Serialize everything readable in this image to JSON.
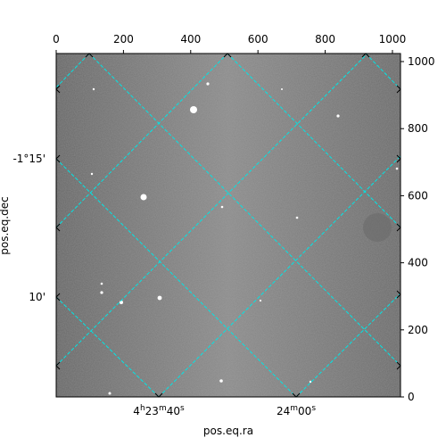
{
  "chart_data": {
    "type": "image",
    "xlabel": "pos.eq.ra",
    "ylabel": "pos.eq.dec",
    "xlim": [
      0,
      1024
    ],
    "ylim": [
      0,
      1024
    ],
    "xticks": [
      0,
      200,
      400,
      600,
      800,
      1000
    ],
    "yticks": [
      0,
      200,
      400,
      600,
      800,
      1000
    ],
    "ra_ticks": [
      {
        "label": [
          "4",
          "h",
          "23",
          "m",
          "40",
          "s"
        ]
      },
      {
        "label": [
          "24",
          "m",
          "00",
          "s"
        ]
      }
    ],
    "dec_ticks": [
      {
        "label": "-1°15'"
      },
      {
        "label": "10'"
      }
    ],
    "grid": true,
    "grid_color": "#00e5e5"
  }
}
